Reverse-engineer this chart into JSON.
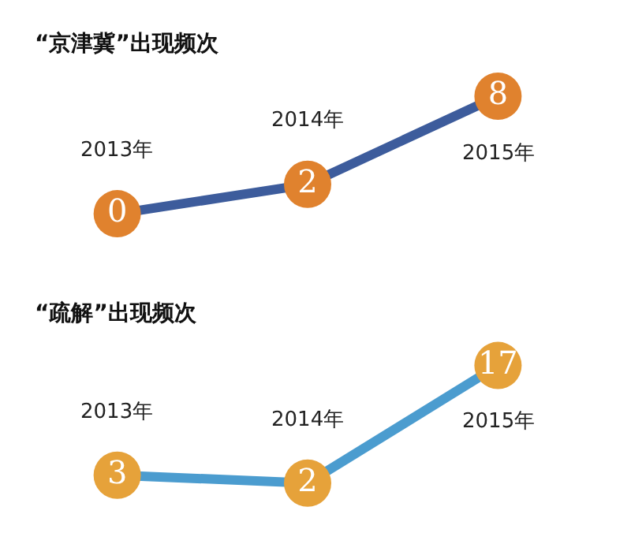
{
  "chart_data": [
    {
      "type": "line",
      "title": "“京津冀”出现频次",
      "categories": [
        "2013年",
        "2014年",
        "2015年"
      ],
      "series": [
        {
          "color": "#3d5c9c",
          "colors": [
            "#e0822e",
            "#e0822e",
            "#e0822e"
          ],
          "values": [
            0,
            2,
            8
          ]
        }
      ],
      "data_labels": true,
      "marker": "circle",
      "tick_labels": false
    },
    {
      "type": "line",
      "title": "“疏解”出现频次",
      "categories": [
        "2013年",
        "2014年",
        "2015年"
      ],
      "series": [
        {
          "color": "#4b9ccf",
          "colors": [
            "#e6a23a",
            "#e6a23a",
            "#e6a23a"
          ],
          "values": [
            3,
            2,
            17
          ]
        }
      ],
      "data_labels": true,
      "marker": "circle",
      "tick_labels": false
    }
  ]
}
